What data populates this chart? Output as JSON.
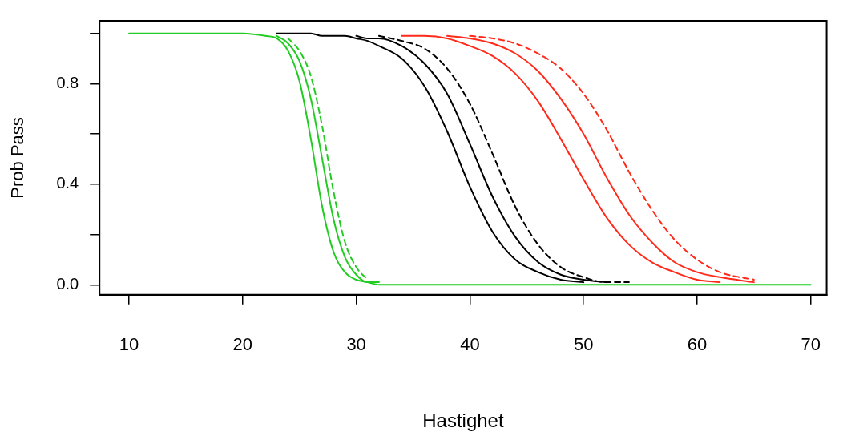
{
  "chart_data": {
    "type": "line",
    "xlabel": "Hastighet",
    "ylabel": "Prob Pass",
    "x": [
      10,
      15,
      20,
      22,
      23,
      24,
      25,
      26,
      27,
      28,
      29,
      30,
      31,
      32,
      34,
      36,
      38,
      40,
      42,
      44,
      46,
      48,
      50,
      52,
      54,
      56,
      58,
      60,
      62,
      65,
      70
    ],
    "xlim": [
      7.4,
      71.4
    ],
    "xticks": [
      10,
      20,
      30,
      40,
      50,
      60,
      70
    ],
    "ylim": [
      -0.04,
      1.05
    ],
    "yticks": [
      {
        "value": 0,
        "label": "0.0"
      },
      {
        "value": 0.2,
        "label": null
      },
      0.4,
      {
        "value": 0.6,
        "label": null
      },
      0.8,
      {
        "value": 1,
        "label": null
      }
    ],
    "grid": false,
    "legend": false,
    "marker": "none",
    "series": [
      {
        "color": "#22cc22",
        "line_style": "solid",
        "values": [
          1,
          1,
          1,
          0.99,
          0.98,
          0.93,
          0.81,
          0.58,
          0.31,
          0.13,
          0.05,
          0.02,
          0.01,
          0,
          0,
          0,
          0,
          0,
          0,
          0,
          0,
          0,
          0,
          0,
          0,
          0,
          0,
          0,
          0,
          0,
          0
        ]
      },
      {
        "color": "#22cc22",
        "line_style": "solid",
        "values": [
          null,
          null,
          null,
          null,
          0.99,
          0.96,
          0.89,
          0.74,
          0.5,
          0.26,
          0.11,
          0.04,
          0.01,
          0.01,
          null,
          null,
          null,
          null,
          null,
          null,
          null,
          null,
          null,
          null,
          null,
          null,
          null,
          null,
          null,
          null,
          null
        ]
      },
      {
        "color": "#22cc22",
        "line_style": "dashed",
        "values": [
          null,
          null,
          null,
          null,
          null,
          0.98,
          0.93,
          0.83,
          0.63,
          0.37,
          0.17,
          0.07,
          0.02,
          null,
          null,
          null,
          null,
          null,
          null,
          null,
          null,
          null,
          null,
          null,
          null,
          null,
          null,
          null,
          null,
          null,
          null
        ]
      },
      {
        "color": "#000000",
        "line_style": "solid",
        "values": [
          null,
          null,
          null,
          null,
          1,
          1,
          1,
          1,
          0.99,
          0.99,
          0.99,
          0.98,
          0.97,
          0.95,
          0.9,
          0.79,
          0.61,
          0.39,
          0.21,
          0.1,
          0.05,
          0.02,
          0.01,
          null,
          null,
          null,
          null,
          null,
          null,
          null,
          null
        ]
      },
      {
        "color": "#000000",
        "line_style": "solid",
        "values": [
          null,
          null,
          null,
          null,
          null,
          null,
          null,
          null,
          null,
          null,
          null,
          0.99,
          0.98,
          0.98,
          0.95,
          0.88,
          0.76,
          0.56,
          0.35,
          0.19,
          0.09,
          0.04,
          0.02,
          0.01,
          null,
          null,
          null,
          null,
          null,
          null,
          null
        ]
      },
      {
        "color": "#000000",
        "line_style": "dashed",
        "values": [
          null,
          null,
          null,
          null,
          null,
          null,
          null,
          null,
          null,
          null,
          null,
          null,
          null,
          0.99,
          0.97,
          0.94,
          0.86,
          0.72,
          0.52,
          0.31,
          0.16,
          0.07,
          0.03,
          0.01,
          0.01,
          null,
          null,
          null,
          null,
          null,
          null
        ]
      },
      {
        "color": "#ff2a1a",
        "line_style": "solid",
        "values": [
          null,
          null,
          null,
          null,
          null,
          null,
          null,
          null,
          null,
          null,
          null,
          null,
          null,
          null,
          0.99,
          0.99,
          0.98,
          0.95,
          0.91,
          0.84,
          0.73,
          0.58,
          0.42,
          0.27,
          0.16,
          0.09,
          0.05,
          0.02,
          0.01,
          null,
          null
        ]
      },
      {
        "color": "#ff2a1a",
        "line_style": "solid",
        "values": [
          null,
          null,
          null,
          null,
          null,
          null,
          null,
          null,
          null,
          null,
          null,
          null,
          null,
          null,
          null,
          null,
          0.99,
          0.98,
          0.96,
          0.92,
          0.85,
          0.74,
          0.6,
          0.43,
          0.28,
          0.17,
          0.09,
          0.05,
          0.03,
          0.01,
          null
        ]
      },
      {
        "color": "#ff2a1a",
        "line_style": "dashed",
        "values": [
          null,
          null,
          null,
          null,
          null,
          null,
          null,
          null,
          null,
          null,
          null,
          null,
          null,
          null,
          null,
          null,
          null,
          0.99,
          0.98,
          0.96,
          0.92,
          0.86,
          0.76,
          0.62,
          0.45,
          0.3,
          0.18,
          0.1,
          0.05,
          0.02,
          null
        ]
      }
    ]
  }
}
